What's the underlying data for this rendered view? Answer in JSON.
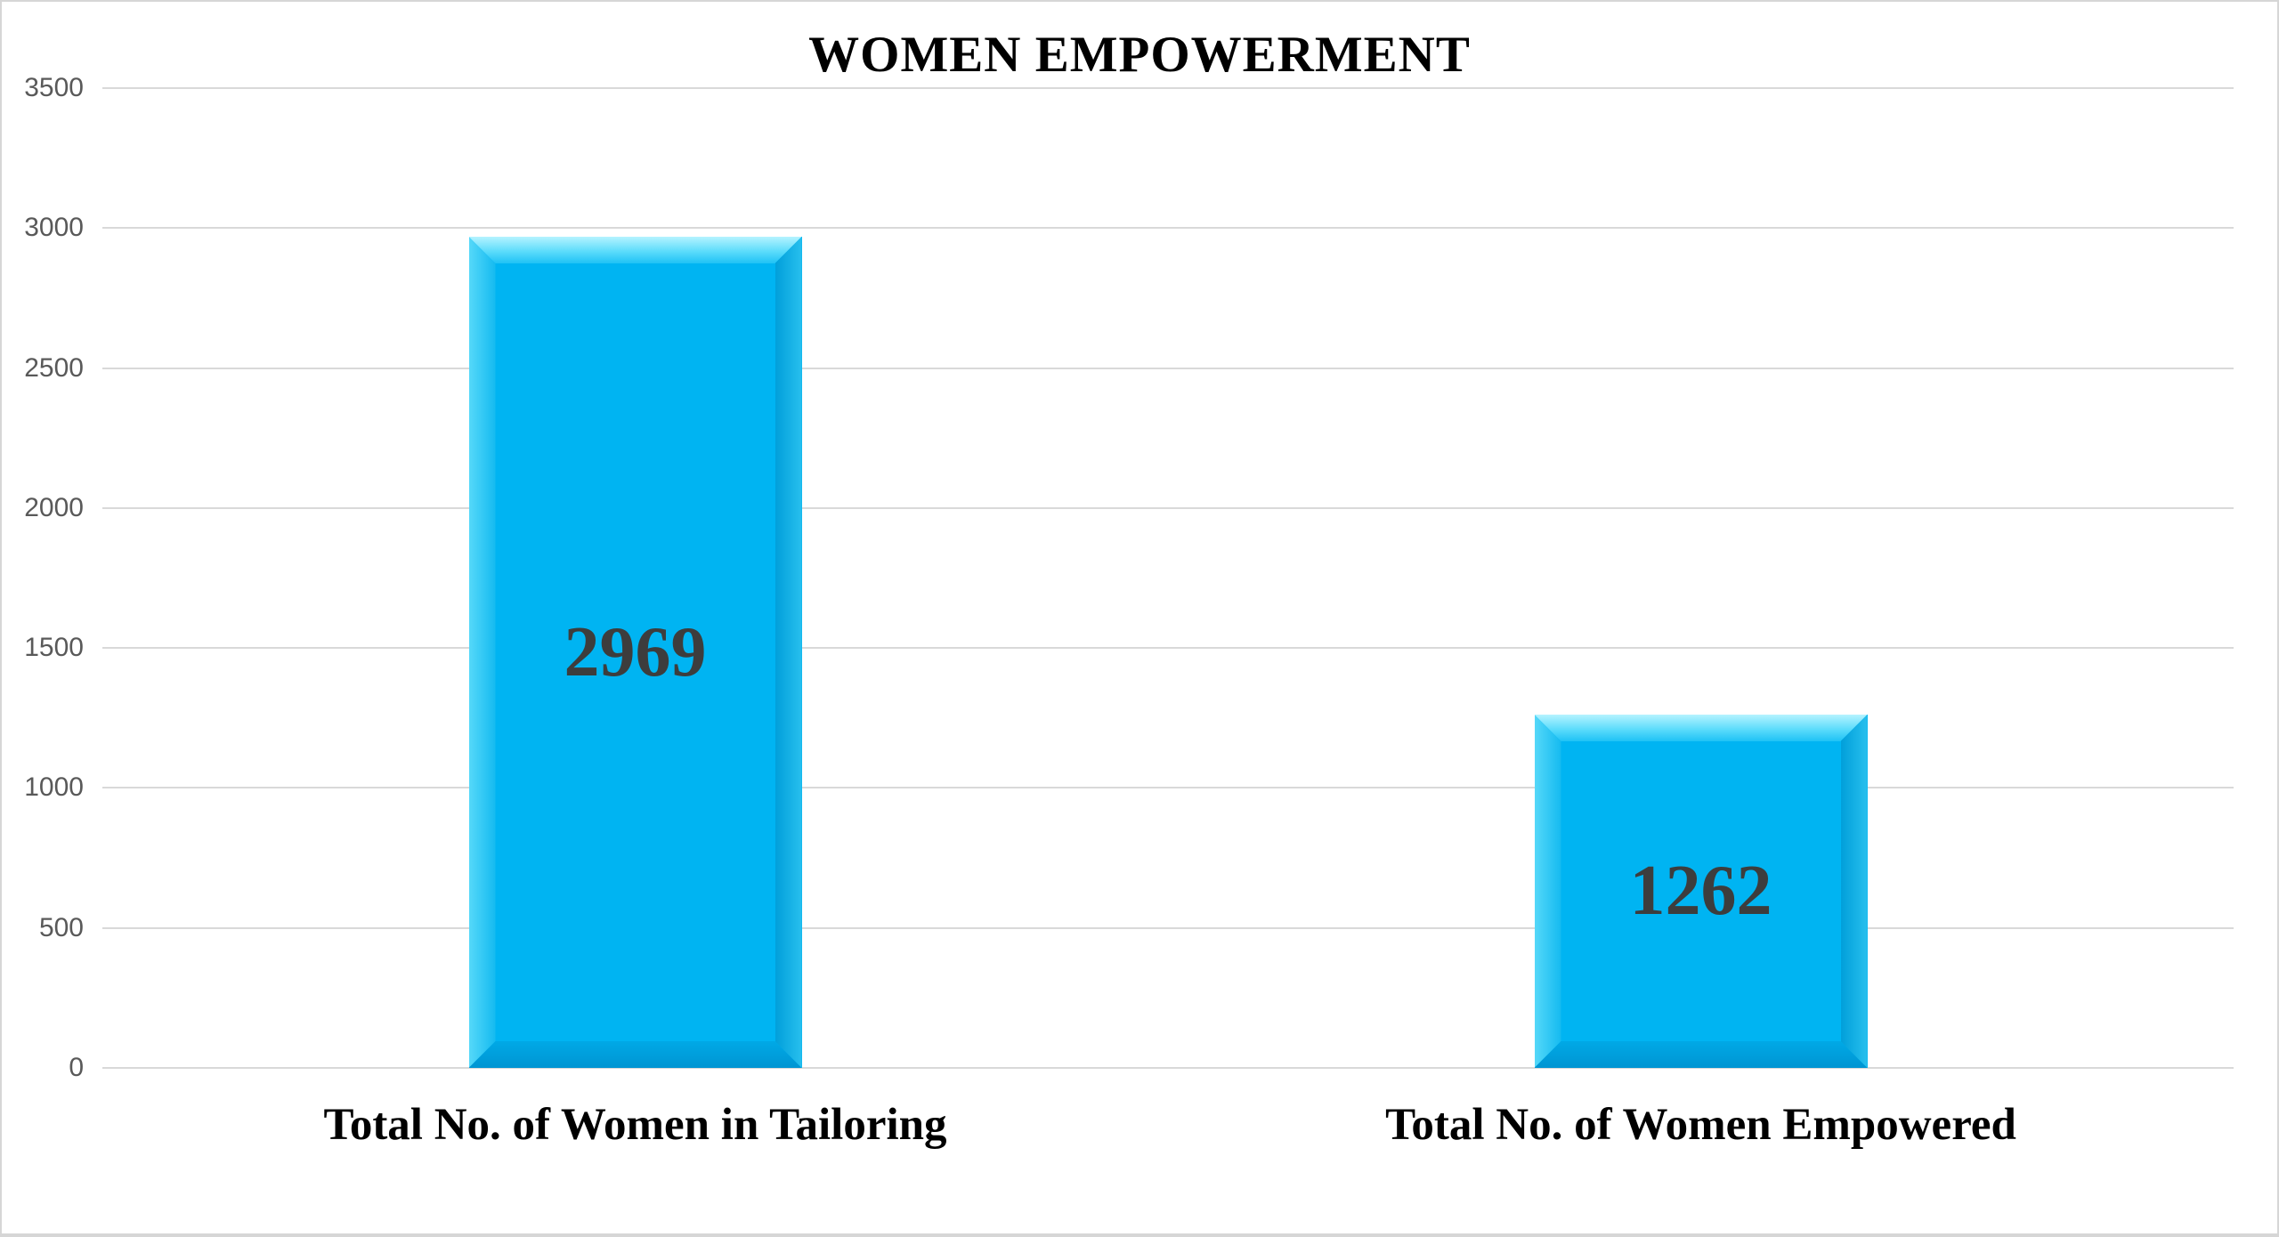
{
  "chart_data": {
    "type": "bar",
    "title": "WOMEN EMPOWERMENT",
    "categories": [
      "Total No. of Women in Tailoring",
      "Total No. of Women Empowered"
    ],
    "values": [
      2969,
      1262
    ],
    "data_labels": [
      "2969",
      "1262"
    ],
    "ylim": [
      0,
      3500
    ],
    "yticks": [
      0,
      500,
      1000,
      1500,
      2000,
      2500,
      3000,
      3500
    ],
    "xlabel": "",
    "ylabel": "",
    "grid": true,
    "legend": false,
    "bar_style": "3d-bevel",
    "colors": {
      "bar_fill": "#00b4f2",
      "value_label": "#3d3d3d",
      "tick_label": "#595959",
      "gridline": "#d9d9d9",
      "title": "#000000",
      "category_label": "#000000",
      "chart_border": "#d6d6d6"
    }
  }
}
